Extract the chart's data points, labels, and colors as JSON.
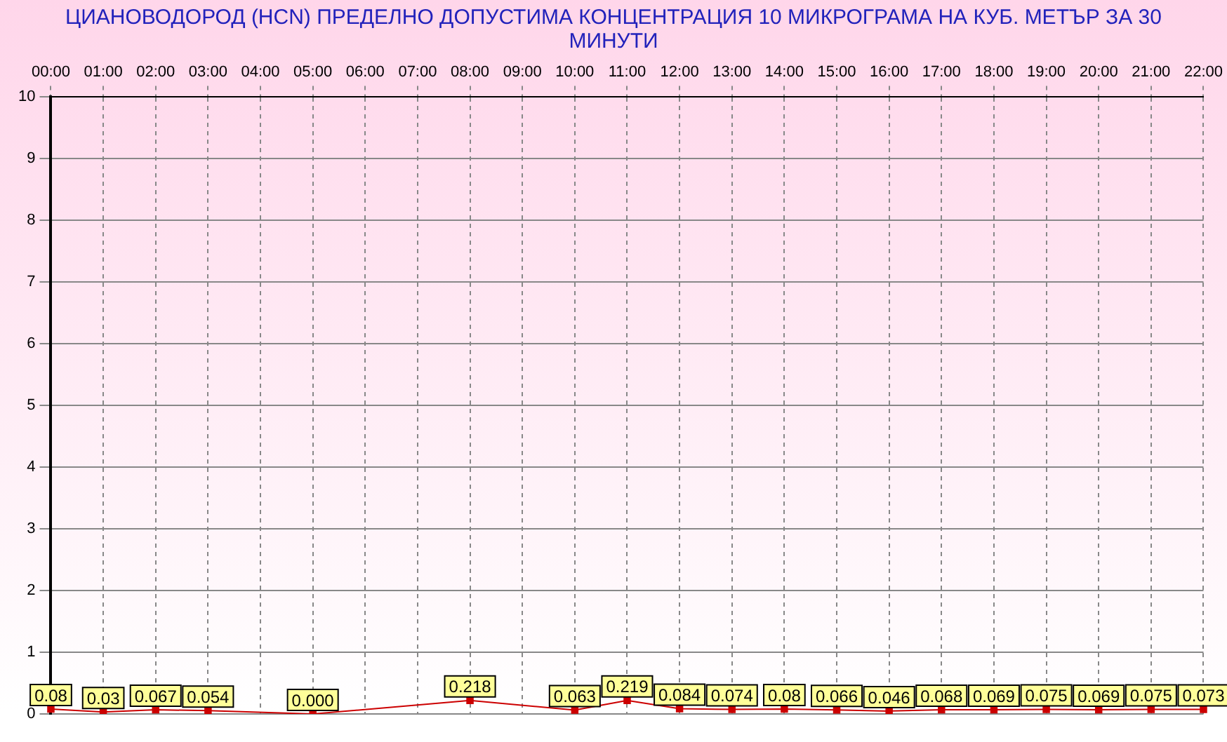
{
  "chart_data": {
    "type": "line",
    "title": "ЦИАНОВОДОРОД      (HCN)    ПРЕДЕЛНО ДОПУСТИМА КОНЦЕНТРАЦИЯ 10 МИКРОГРАМА  НА КУБ. МЕТЪР ЗА 30 МИНУТИ",
    "categories": [
      "00:00",
      "01:00",
      "02:00",
      "03:00",
      "04:00",
      "05:00",
      "06:00",
      "07:00",
      "08:00",
      "09:00",
      "10:00",
      "11:00",
      "12:00",
      "13:00",
      "14:00",
      "15:00",
      "16:00",
      "17:00",
      "18:00",
      "19:00",
      "20:00",
      "21:00",
      "22:00"
    ],
    "series": [
      {
        "color": "#cc0000",
        "values": [
          0.08,
          0.03,
          0.067,
          0.054,
          null,
          0,
          null,
          null,
          0.218,
          null,
          0.063,
          0.219,
          0.084,
          0.074,
          0.08,
          0.066,
          0.046,
          0.068,
          0.069,
          0.075,
          0.069,
          0.075,
          0.073
        ],
        "value_labels": [
          "0.08",
          "0.03",
          "0.067",
          "0.054",
          null,
          "0.000",
          null,
          null,
          "0.218",
          null,
          "0.063",
          "0.219",
          "0.084",
          "0.074",
          "0.08",
          "0.066",
          "0.046",
          "0.068",
          "0.069",
          "0.075",
          "0.069",
          "0.075",
          "0.073"
        ]
      }
    ],
    "ylim": [
      0,
      10
    ],
    "yticks": [
      0,
      1,
      2,
      3,
      4,
      5,
      6,
      7,
      8,
      9,
      10
    ],
    "grid": true,
    "marker": "square",
    "legend": false
  }
}
